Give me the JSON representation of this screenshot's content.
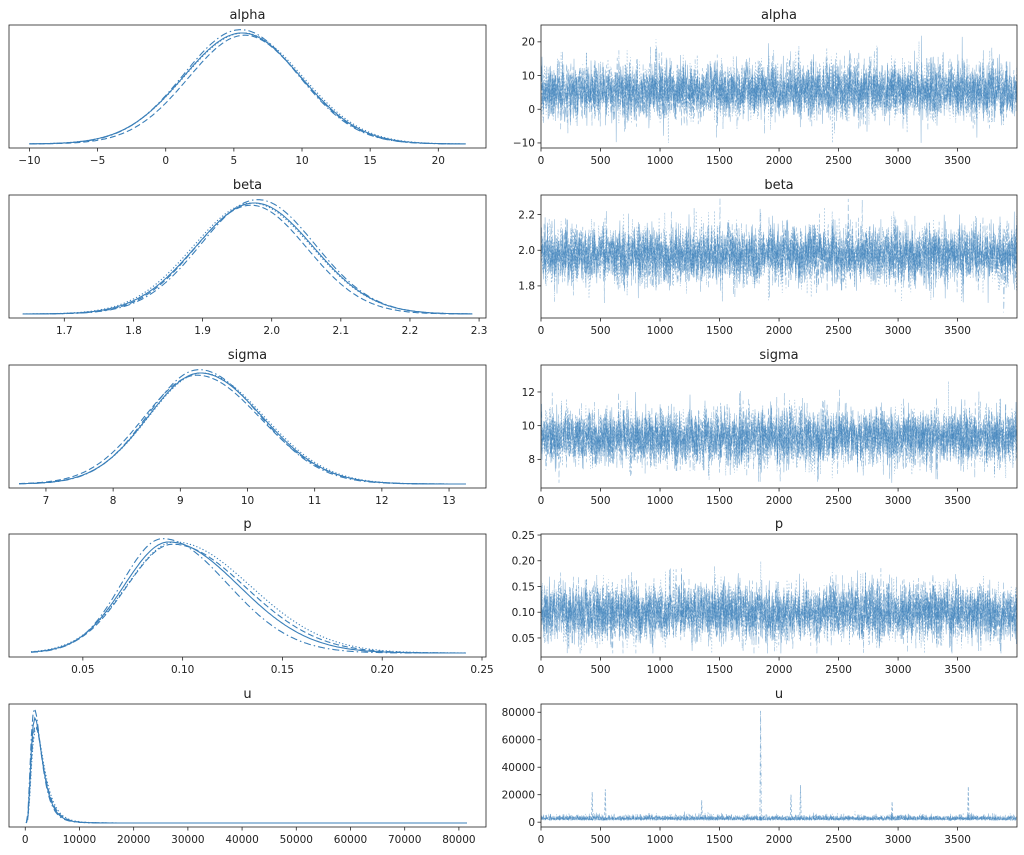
{
  "chart_data": [
    {
      "type": "line",
      "panel": "density",
      "title": "alpha",
      "xlim": [
        -11.5,
        23.5
      ],
      "xticks": [
        -10,
        -5,
        0,
        5,
        10,
        15,
        20
      ],
      "tick_labels": [
        "−10",
        "−5",
        "0",
        "5",
        "10",
        "15",
        "20"
      ],
      "x_range": [
        -10,
        22
      ],
      "series": [
        {
          "mu": 5.6,
          "sd": 4.3,
          "style": "solid"
        },
        {
          "mu": 5.8,
          "sd": 4.15,
          "style": "dashed"
        },
        {
          "mu": 5.5,
          "sd": 4.2,
          "style": "dashdot"
        },
        {
          "mu": 5.7,
          "sd": 4.35,
          "style": "dotted"
        }
      ],
      "color": "#3a7fb9"
    },
    {
      "type": "line",
      "panel": "trace",
      "title": "alpha",
      "x": [
        0,
        3999
      ],
      "xlim": [
        0,
        3999
      ],
      "xticks": [
        0,
        500,
        1000,
        1500,
        2000,
        2500,
        3000,
        3500
      ],
      "ylim": [
        -11.5,
        25
      ],
      "yticks": [
        -10,
        0,
        10,
        20
      ],
      "y_center": 5.5,
      "y_spread": 4.3,
      "y_min": -10,
      "y_max": 22,
      "color": "#3a7fb9"
    },
    {
      "type": "line",
      "panel": "density",
      "title": "beta",
      "xlim": [
        1.62,
        2.31
      ],
      "xticks": [
        1.7,
        1.8,
        1.9,
        2.0,
        2.1,
        2.2,
        2.3
      ],
      "tick_labels": [
        "1.7",
        "1.8",
        "1.9",
        "2.0",
        "2.1",
        "2.2",
        "2.3"
      ],
      "x_range": [
        1.64,
        2.29
      ],
      "series": [
        {
          "mu": 1.975,
          "sd": 0.085,
          "style": "solid"
        },
        {
          "mu": 1.97,
          "sd": 0.081,
          "style": "dashed"
        },
        {
          "mu": 1.98,
          "sd": 0.083,
          "style": "dashdot"
        },
        {
          "mu": 1.972,
          "sd": 0.086,
          "style": "dotted"
        }
      ],
      "color": "#3a7fb9"
    },
    {
      "type": "line",
      "panel": "trace",
      "title": "beta",
      "x": [
        0,
        3999
      ],
      "xlim": [
        0,
        3999
      ],
      "xticks": [
        0,
        500,
        1000,
        1500,
        2000,
        2500,
        3000,
        3500
      ],
      "ylim": [
        1.62,
        2.31
      ],
      "yticks": [
        1.8,
        2.0,
        2.2
      ],
      "y_center": 1.975,
      "y_spread": 0.085,
      "y_min": 1.64,
      "y_max": 2.29,
      "color": "#3a7fb9"
    },
    {
      "type": "line",
      "panel": "density",
      "title": "sigma",
      "xlim": [
        6.45,
        13.55
      ],
      "xticks": [
        7,
        8,
        9,
        10,
        11,
        12,
        13
      ],
      "tick_labels": [
        "7",
        "8",
        "9",
        "10",
        "11",
        "12",
        "13"
      ],
      "x_range": [
        6.6,
        13.25
      ],
      "series": [
        {
          "mu": 9.3,
          "sd": 0.82,
          "skew": 0.12,
          "style": "solid"
        },
        {
          "mu": 9.25,
          "sd": 0.84,
          "skew": 0.12,
          "style": "dashed"
        },
        {
          "mu": 9.28,
          "sd": 0.8,
          "skew": 0.12,
          "style": "dashdot"
        },
        {
          "mu": 9.32,
          "sd": 0.83,
          "skew": 0.12,
          "style": "dotted"
        }
      ],
      "color": "#3a7fb9"
    },
    {
      "type": "line",
      "panel": "trace",
      "title": "sigma",
      "x": [
        0,
        3999
      ],
      "xlim": [
        0,
        3999
      ],
      "xticks": [
        0,
        500,
        1000,
        1500,
        2000,
        2500,
        3000,
        3500
      ],
      "ylim": [
        6.3,
        13.6
      ],
      "yticks": [
        8,
        10,
        12
      ],
      "y_center": 9.3,
      "y_spread": 0.85,
      "y_min": 6.6,
      "y_max": 13.3,
      "color": "#3a7fb9"
    },
    {
      "type": "line",
      "panel": "density",
      "title": "p",
      "xlim": [
        0.013,
        0.252
      ],
      "xticks": [
        0.05,
        0.1,
        0.15,
        0.2,
        0.25
      ],
      "tick_labels": [
        "0.05",
        "0.10",
        "0.15",
        "0.20",
        "0.25"
      ],
      "x_range": [
        0.024,
        0.242
      ],
      "series": [
        {
          "mu": 0.093,
          "sd": 0.026,
          "skew": 0.35,
          "style": "solid"
        },
        {
          "mu": 0.095,
          "sd": 0.027,
          "skew": 0.35,
          "style": "dashed"
        },
        {
          "mu": 0.09,
          "sd": 0.024,
          "skew": 0.35,
          "style": "dashdot"
        },
        {
          "mu": 0.096,
          "sd": 0.028,
          "skew": 0.35,
          "style": "dotted"
        }
      ],
      "color": "#3a7fb9"
    },
    {
      "type": "line",
      "panel": "trace",
      "title": "p",
      "x": [
        0,
        3999
      ],
      "xlim": [
        0,
        3999
      ],
      "xticks": [
        0,
        500,
        1000,
        1500,
        2000,
        2500,
        3000,
        3500
      ],
      "ylim": [
        0.013,
        0.252
      ],
      "yticks": [
        0.05,
        0.1,
        0.15,
        0.2,
        0.25
      ],
      "tick_labels": [
        "0.05",
        "0.10",
        "0.15",
        "0.20",
        "0.25"
      ],
      "y_center": 0.1,
      "y_spread": 0.028,
      "y_min": 0.02,
      "y_max": 0.24,
      "color": "#3a7fb9"
    },
    {
      "type": "line",
      "panel": "density",
      "title": "u",
      "xlim": [
        -3000,
        85000
      ],
      "xticks": [
        0,
        10000,
        20000,
        30000,
        40000,
        50000,
        60000,
        70000,
        80000
      ],
      "x_range": [
        200,
        81500
      ],
      "series": [
        {
          "mode": 1800,
          "style": "solid"
        },
        {
          "mode": 1900,
          "style": "dashed"
        },
        {
          "mode": 1700,
          "style": "dashdot"
        },
        {
          "mode": 2000,
          "style": "dotted"
        }
      ],
      "color": "#3a7fb9"
    },
    {
      "type": "line",
      "panel": "trace",
      "title": "u",
      "x": [
        0,
        3999
      ],
      "xlim": [
        0,
        3999
      ],
      "xticks": [
        0,
        500,
        1000,
        1500,
        2000,
        2500,
        3000,
        3500
      ],
      "ylim": [
        -3500,
        86000
      ],
      "yticks": [
        0,
        20000,
        40000,
        60000,
        80000
      ],
      "y_baseline": 2000,
      "y_noise": 2200,
      "spikes": [
        {
          "x": 1845,
          "y": 81000
        },
        {
          "x": 2180,
          "y": 27000
        },
        {
          "x": 3590,
          "y": 26000
        },
        {
          "x": 540,
          "y": 24000
        },
        {
          "x": 430,
          "y": 22000
        },
        {
          "x": 2100,
          "y": 20000
        },
        {
          "x": 1350,
          "y": 16000
        },
        {
          "x": 2950,
          "y": 15000
        }
      ],
      "color": "#3a7fb9"
    }
  ]
}
